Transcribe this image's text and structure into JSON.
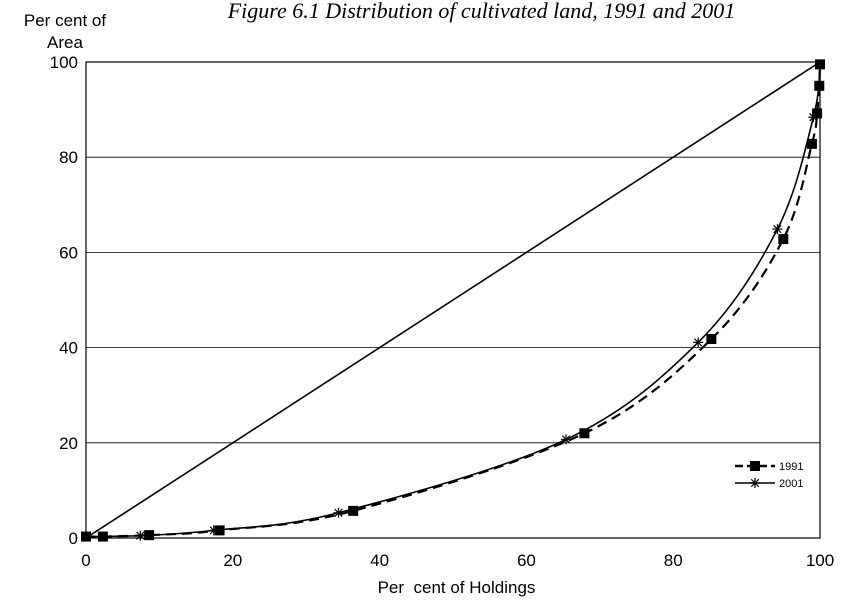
{
  "chart_data": {
    "type": "line",
    "title": "Figure 6.1 Distribution of cultivated land, 1991 and 2001",
    "ylabel_lines": [
      "Per cent  of",
      "Area"
    ],
    "xlabel": "Per  cent of Holdings",
    "xlim": [
      0,
      100
    ],
    "ylim": [
      0,
      100
    ],
    "x_ticks": [
      "0",
      "20",
      "40",
      "60",
      "80",
      "100"
    ],
    "y_ticks": [
      "0",
      "20",
      "40",
      "60",
      "80",
      "100"
    ],
    "grid": "horizontal",
    "legend_position": "right",
    "series": [
      {
        "name": "1991",
        "style": "dashed",
        "marker": "square",
        "x": [
          0,
          2.3,
          8.6,
          18.2,
          36.4,
          67.9,
          85.2,
          95.0,
          98.9,
          99.6,
          99.9,
          100
        ],
        "y": [
          0.3,
          0.3,
          0.6,
          1.6,
          5.7,
          22.0,
          41.8,
          62.8,
          82.8,
          89.2,
          95.0,
          99.5
        ]
      },
      {
        "name": "2001",
        "style": "solid",
        "marker": "star",
        "x": [
          0,
          7.4,
          17.4,
          34.4,
          65.4,
          83.4,
          94.2,
          99.1,
          100
        ],
        "y": [
          0.3,
          0.5,
          1.6,
          5.3,
          20.7,
          41.1,
          64.9,
          88.4,
          99.5
        ]
      },
      {
        "name": "",
        "style": "solid",
        "marker": "none",
        "x": [
          0,
          100
        ],
        "y": [
          0,
          100
        ]
      }
    ]
  }
}
